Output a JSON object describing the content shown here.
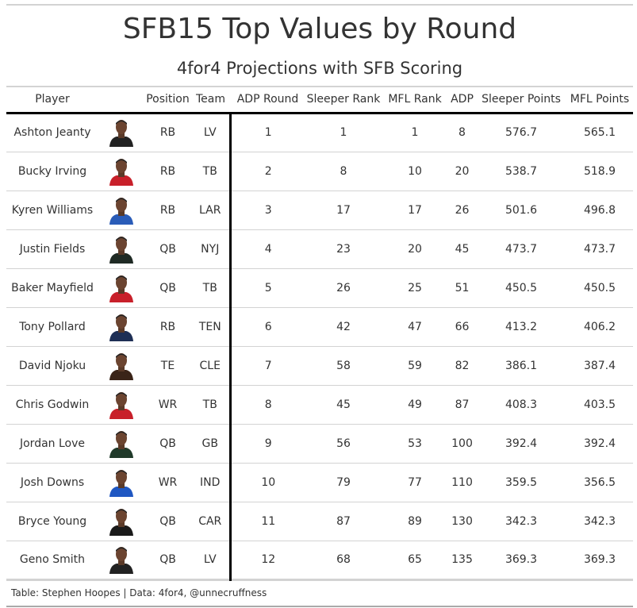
{
  "header": {
    "title": "SFB15 Top Values by Round",
    "subtitle": "4for4 Projections with SFB Scoring"
  },
  "footer": {
    "source": "Table: Stephen Hoopes | Data: 4for4, @unnecruffness"
  },
  "team_colors": {
    "LV": "#222222",
    "TB": "#c8202a",
    "LAR": "#2a5cb8",
    "NYJ": "#1f2a24",
    "TEN": "#1e2f55",
    "CLE": "#3a2418",
    "GB": "#203a2a",
    "IND": "#1f57c2",
    "CAR": "#1a1a1a"
  },
  "chart_data": {
    "type": "table",
    "title": "SFB15 Top Values by Round",
    "subtitle": "4for4 Projections with SFB Scoring",
    "columns": [
      "Player",
      "",
      "Position",
      "Team",
      "ADP Round",
      "Sleeper Rank",
      "MFL Rank",
      "ADP",
      "Sleeper Points",
      "MFL Points"
    ],
    "rows": [
      {
        "player": "Ashton Jeanty",
        "position": "RB",
        "team": "LV",
        "adp_round": "1",
        "sleeper_rank": "1",
        "mfl_rank": "1",
        "adp": "8",
        "sleeper_points": "576.7",
        "mfl_points": "565.1"
      },
      {
        "player": "Bucky Irving",
        "position": "RB",
        "team": "TB",
        "adp_round": "2",
        "sleeper_rank": "8",
        "mfl_rank": "10",
        "adp": "20",
        "sleeper_points": "538.7",
        "mfl_points": "518.9"
      },
      {
        "player": "Kyren Williams",
        "position": "RB",
        "team": "LAR",
        "adp_round": "3",
        "sleeper_rank": "17",
        "mfl_rank": "17",
        "adp": "26",
        "sleeper_points": "501.6",
        "mfl_points": "496.8"
      },
      {
        "player": "Justin Fields",
        "position": "QB",
        "team": "NYJ",
        "adp_round": "4",
        "sleeper_rank": "23",
        "mfl_rank": "20",
        "adp": "45",
        "sleeper_points": "473.7",
        "mfl_points": "473.7"
      },
      {
        "player": "Baker Mayfield",
        "position": "QB",
        "team": "TB",
        "adp_round": "5",
        "sleeper_rank": "26",
        "mfl_rank": "25",
        "adp": "51",
        "sleeper_points": "450.5",
        "mfl_points": "450.5"
      },
      {
        "player": "Tony Pollard",
        "position": "RB",
        "team": "TEN",
        "adp_round": "6",
        "sleeper_rank": "42",
        "mfl_rank": "47",
        "adp": "66",
        "sleeper_points": "413.2",
        "mfl_points": "406.2"
      },
      {
        "player": "David Njoku",
        "position": "TE",
        "team": "CLE",
        "adp_round": "7",
        "sleeper_rank": "58",
        "mfl_rank": "59",
        "adp": "82",
        "sleeper_points": "386.1",
        "mfl_points": "387.4"
      },
      {
        "player": "Chris Godwin",
        "position": "WR",
        "team": "TB",
        "adp_round": "8",
        "sleeper_rank": "45",
        "mfl_rank": "49",
        "adp": "87",
        "sleeper_points": "408.3",
        "mfl_points": "403.5"
      },
      {
        "player": "Jordan Love",
        "position": "QB",
        "team": "GB",
        "adp_round": "9",
        "sleeper_rank": "56",
        "mfl_rank": "53",
        "adp": "100",
        "sleeper_points": "392.4",
        "mfl_points": "392.4"
      },
      {
        "player": "Josh Downs",
        "position": "WR",
        "team": "IND",
        "adp_round": "10",
        "sleeper_rank": "79",
        "mfl_rank": "77",
        "adp": "110",
        "sleeper_points": "359.5",
        "mfl_points": "356.5"
      },
      {
        "player": "Bryce Young",
        "position": "QB",
        "team": "CAR",
        "adp_round": "11",
        "sleeper_rank": "87",
        "mfl_rank": "89",
        "adp": "130",
        "sleeper_points": "342.3",
        "mfl_points": "342.3"
      },
      {
        "player": "Geno Smith",
        "position": "QB",
        "team": "LV",
        "adp_round": "12",
        "sleeper_rank": "68",
        "mfl_rank": "65",
        "adp": "135",
        "sleeper_points": "369.3",
        "mfl_points": "369.3"
      }
    ]
  }
}
